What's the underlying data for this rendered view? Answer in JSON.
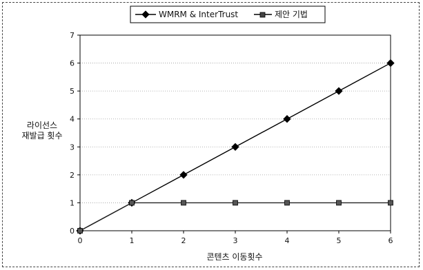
{
  "chart_data": {
    "type": "line",
    "x": [
      0,
      1,
      2,
      3,
      4,
      5,
      6
    ],
    "series": [
      {
        "name": "WMRM & InterTrust",
        "values": [
          0,
          1,
          2,
          3,
          4,
          5,
          6
        ],
        "marker": "diamond",
        "color": "#000000"
      },
      {
        "name": "제안 기법",
        "values": [
          0,
          1,
          1,
          1,
          1,
          1,
          1
        ],
        "marker": "square",
        "color": "#222222"
      }
    ],
    "xlabel": "콘텐츠 이동횟수",
    "ylabel_lines": [
      "라이선스",
      "재발급 횟수"
    ],
    "xlim": [
      0,
      6
    ],
    "ylim": [
      0,
      7
    ],
    "xticks": [
      0,
      1,
      2,
      3,
      4,
      5,
      6
    ],
    "yticks": [
      0,
      1,
      2,
      3,
      4,
      5,
      6,
      7
    ],
    "grid": true,
    "legend_position": "top"
  }
}
